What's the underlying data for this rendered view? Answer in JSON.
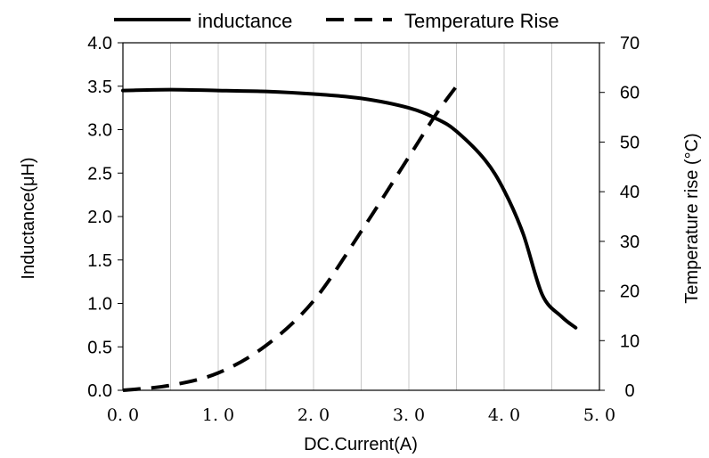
{
  "chart_data": {
    "type": "line",
    "xlabel": "DC.Current(A)",
    "ylabel": "Inductance(μH)",
    "y2label": "Temperature rise (°C)",
    "xlim": [
      0,
      5.0
    ],
    "ylim": [
      0,
      4.0
    ],
    "y2lim": [
      0,
      70
    ],
    "x_ticks": [
      "0. 0",
      "1. 0",
      "2. 0",
      "3. 0",
      "4. 0",
      "5. 0"
    ],
    "y_ticks": [
      "0.0",
      "0.5",
      "1.0",
      "1.5",
      "2.0",
      "2.5",
      "3.0",
      "3.5",
      "4.0"
    ],
    "y2_ticks": [
      "0",
      "10",
      "20",
      "30",
      "40",
      "50",
      "60",
      "70"
    ],
    "grid": "vertical",
    "legend_position": "top",
    "series": [
      {
        "name": "inductance",
        "axis": "left",
        "style": "solid",
        "color": "#000000",
        "points": [
          [
            0.0,
            3.45
          ],
          [
            0.5,
            3.46
          ],
          [
            1.0,
            3.45
          ],
          [
            1.5,
            3.44
          ],
          [
            2.0,
            3.41
          ],
          [
            2.5,
            3.36
          ],
          [
            3.0,
            3.25
          ],
          [
            3.3,
            3.12
          ],
          [
            3.5,
            2.98
          ],
          [
            3.8,
            2.65
          ],
          [
            4.0,
            2.3
          ],
          [
            4.2,
            1.8
          ],
          [
            4.4,
            1.1
          ],
          [
            4.6,
            0.85
          ],
          [
            4.75,
            0.72
          ]
        ]
      },
      {
        "name": "Temperature Rise",
        "axis": "right",
        "style": "dashed",
        "color": "#000000",
        "points": [
          [
            0.0,
            0.0
          ],
          [
            0.5,
            1.0
          ],
          [
            1.0,
            3.5
          ],
          [
            1.5,
            9.0
          ],
          [
            2.0,
            18.0
          ],
          [
            2.5,
            32.0
          ],
          [
            3.0,
            47.0
          ],
          [
            3.3,
            56.0
          ],
          [
            3.55,
            62.5
          ]
        ]
      }
    ]
  }
}
